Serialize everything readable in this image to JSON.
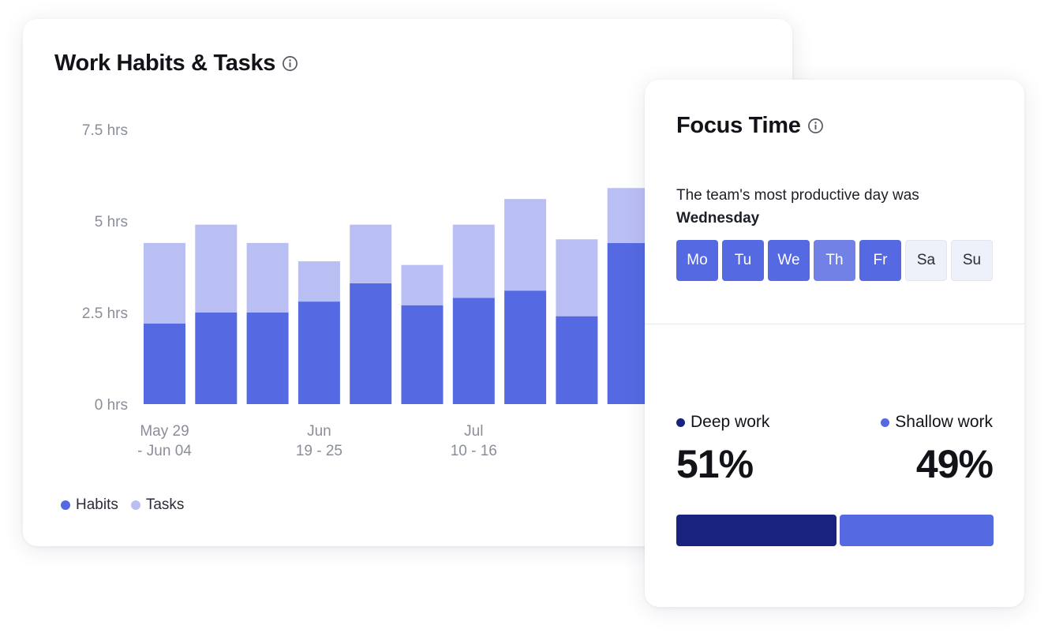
{
  "colors": {
    "habits": "#5569e2",
    "tasks": "#babff3",
    "deep_work": "#19237f",
    "shallow_work": "#5569e2",
    "day_strong": "#5569e2",
    "day_medium": "#7281e6",
    "day_inactive": "#eef0fa",
    "icon": "#555a66"
  },
  "habits_card": {
    "title": "Work Habits & Tasks",
    "info_icon": "info-icon",
    "legend": [
      {
        "label": "Habits",
        "color": "#5569e2"
      },
      {
        "label": "Tasks",
        "color": "#babff3"
      }
    ]
  },
  "chart_data": {
    "type": "bar",
    "stacked": true,
    "y_tick_labels": [
      "0 hrs",
      "2.5 hrs",
      "5 hrs",
      "7.5 hrs"
    ],
    "ylim": [
      0,
      7.5
    ],
    "grid": false,
    "legend_position": "bottom-left",
    "x_tick_labels": [
      [
        "May 29",
        "- Jun 04"
      ],
      [
        "Jun",
        "19 - 25"
      ],
      [
        "Jul",
        "10 - 16"
      ]
    ],
    "x_tick_positions": [
      0,
      3,
      6
    ],
    "series": [
      {
        "name": "Habits",
        "values": [
          2.2,
          2.5,
          2.5,
          2.8,
          3.3,
          2.7,
          2.9,
          3.1,
          2.4,
          4.4
        ]
      },
      {
        "name": "Tasks",
        "values": [
          2.2,
          2.4,
          1.9,
          1.1,
          1.6,
          1.1,
          2.0,
          2.5,
          2.1,
          1.5
        ]
      }
    ]
  },
  "focus_card": {
    "title": "Focus Time",
    "info_icon": "info-icon",
    "productive_text": "The team's most productive day was",
    "productive_day": "Wednesday",
    "days": [
      {
        "label": "Mo",
        "state": "strong"
      },
      {
        "label": "Tu",
        "state": "strong"
      },
      {
        "label": "We",
        "state": "strong"
      },
      {
        "label": "Th",
        "state": "medium"
      },
      {
        "label": "Fr",
        "state": "strong"
      },
      {
        "label": "Sa",
        "state": "inactive"
      },
      {
        "label": "Su",
        "state": "inactive"
      }
    ],
    "deep_work": {
      "label": "Deep work",
      "percent": "51%",
      "fraction": 0.51
    },
    "shallow_work": {
      "label": "Shallow work",
      "percent": "49%",
      "fraction": 0.49
    }
  }
}
